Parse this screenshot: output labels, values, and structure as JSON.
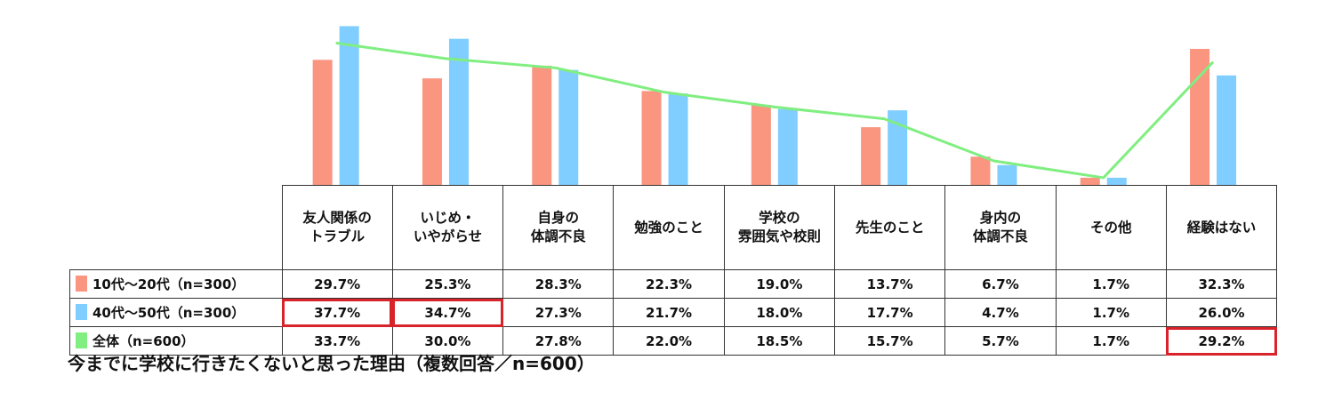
{
  "chart_data": {
    "type": "bar",
    "title": "今までに学校に行きたくないと思った理由（複数回答／n=600）",
    "categories": [
      "友人関係の\nトラブル",
      "いじめ・\nいやがらせ",
      "自身の\n体調不良",
      "勉強のこと",
      "学校の\n雰囲気や校則",
      "先生のこと",
      "身内の\n体調不良",
      "その他",
      "経験はない"
    ],
    "series": [
      {
        "name": "10代～20代（n=300）",
        "type": "bar",
        "color": "#fa9580",
        "values": [
          29.7,
          25.3,
          28.3,
          22.3,
          19.0,
          13.7,
          6.7,
          1.7,
          32.3
        ],
        "labels": [
          "29.7%",
          "25.3%",
          "28.3%",
          "22.3%",
          "19.0%",
          "13.7%",
          "6.7%",
          "1.7%",
          "32.3%"
        ]
      },
      {
        "name": "40代～50代（n=300）",
        "type": "bar",
        "color": "#80cdff",
        "values": [
          37.7,
          34.7,
          27.3,
          21.7,
          18.0,
          17.7,
          4.7,
          1.7,
          26.0
        ],
        "labels": [
          "37.7%",
          "34.7%",
          "27.3%",
          "21.7%",
          "18.0%",
          "17.7%",
          "4.7%",
          "1.7%",
          "26.0%"
        ]
      },
      {
        "name": "全体（n=600）",
        "type": "line",
        "color": "#80ee80",
        "values": [
          33.7,
          30.0,
          27.8,
          22.0,
          18.5,
          15.7,
          5.7,
          1.7,
          29.2
        ],
        "labels": [
          "33.7%",
          "30.0%",
          "27.8%",
          "22.0%",
          "18.5%",
          "15.7%",
          "5.7%",
          "1.7%",
          "29.2%"
        ]
      }
    ],
    "ylim": [
      0,
      38
    ],
    "highlights": [
      {
        "series": 1,
        "index": 0
      },
      {
        "series": 1,
        "index": 1
      },
      {
        "series": 2,
        "index": 8
      }
    ],
    "highlight_color": "#d9232a"
  }
}
